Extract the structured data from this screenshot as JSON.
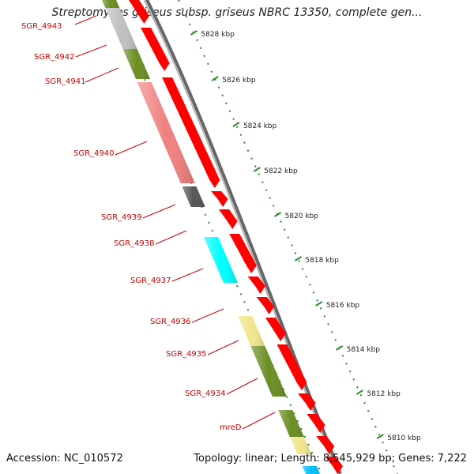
{
  "title": "Streptomyces griseus subsp. griseus NBRC 13350, complete gen...",
  "accession_text": "Accession: NC_010572",
  "topology_text": "Topology: linear; Length: 8,545,929 bp; Genes: 7,222",
  "colors": {
    "forward_gene": "#ff0000",
    "backbone": "#8c8c8c",
    "tick": "#2e8b2e",
    "label": "#cc0000"
  },
  "scale_ticks": [
    "5828 kbp",
    "5826 kbp",
    "5824 kbp",
    "5822 kbp",
    "5820 kbp",
    "5818 kbp",
    "5816 kbp",
    "5814 kbp",
    "5812 kbp",
    "5810 kbp"
  ],
  "gene_labels": [
    "SGR_4943",
    "SGR_4942",
    "SGR_4941",
    "SGR_4940",
    "SGR_4939",
    "SGR_4938",
    "SGR_4937",
    "SGR_4936",
    "SGR_4935",
    "SGR_4934",
    "mreD"
  ],
  "outer_genes": [
    {
      "color": "#ff0000"
    },
    {
      "color": "#ff0000"
    },
    {
      "color": "#ff0000"
    },
    {
      "color": "#ff0000"
    },
    {
      "color": "#ff0000"
    },
    {
      "color": "#ff0000"
    },
    {
      "color": "#ff0000"
    },
    {
      "color": "#ff0000"
    },
    {
      "color": "#ff0000"
    },
    {
      "color": "#ff0000"
    },
    {
      "color": "#ff0000"
    },
    {
      "color": "#ff0000"
    },
    {
      "color": "#ff0000"
    },
    {
      "color": "#ff0000"
    }
  ],
  "inner_genes": [
    {
      "color": "#6b8e23",
      "label": "SGR_4943"
    },
    {
      "color": "#c0c0c0",
      "label": "SGR_4942"
    },
    {
      "color": "#6b8e23",
      "label": "SGR_4941"
    },
    {
      "color": "#f08080",
      "label": "SGR_4940"
    },
    {
      "color": "#555555",
      "label": "SGR_4939"
    },
    {
      "color": "#00ffff",
      "label": "SGR_4937"
    },
    {
      "color": "#f0e68c",
      "label": "SGR_4935"
    },
    {
      "color": "#6b8e23",
      "label": "SGR_4934"
    },
    {
      "color": "#6b8e23",
      "label": "mreD"
    },
    {
      "color": "#f0e68c",
      "label": ""
    },
    {
      "color": "#00bfff",
      "label": ""
    }
  ]
}
